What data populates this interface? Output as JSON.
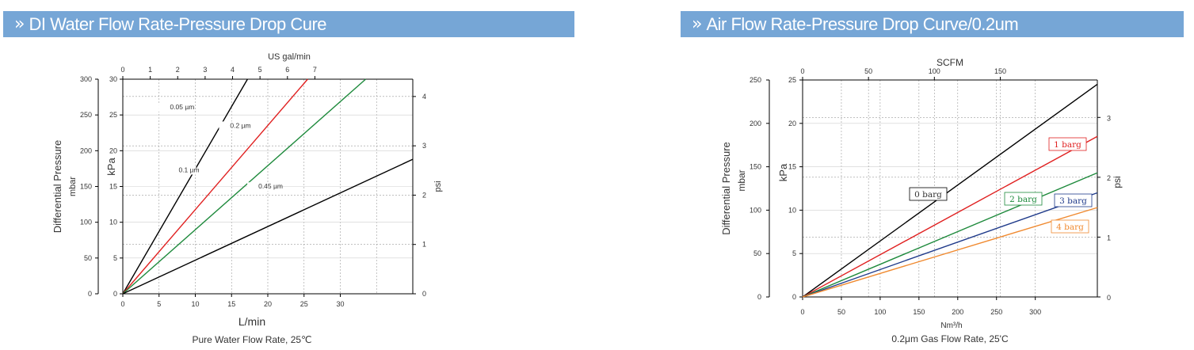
{
  "banners": [
    {
      "title": "DI Water Flow Rate-Pressure Drop Cure"
    },
    {
      "title": "Air Flow Rate-Pressure Drop Curve/0.2um"
    }
  ],
  "chart_data": [
    {
      "type": "line",
      "title": "DI Water Flow Rate-Pressure Drop Cure",
      "xlabel": "L/min",
      "xlabel2": "Pure Water Flow Rate, 25℃",
      "x2label": "US gal/min",
      "ylabel": "Differential Pressure",
      "y_mbar_label": "mbar",
      "y_kpa_label": "kPa",
      "y_psi_label": "psi",
      "xlim": [
        0,
        40
      ],
      "ylim": [
        0,
        30
      ],
      "x_ticks": [
        0,
        5,
        10,
        15,
        20,
        25,
        30
      ],
      "x2_ticks": [
        0,
        1,
        2,
        3,
        4,
        5,
        6,
        7
      ],
      "y_kpa_ticks": [
        0,
        5,
        10,
        15,
        20,
        25,
        30
      ],
      "y_mbar_ticks": [
        0,
        50,
        100,
        150,
        200,
        250,
        300
      ],
      "y_psi_ticks": [
        0,
        1,
        2,
        3,
        4
      ],
      "series": [
        {
          "name": "0.05 µm",
          "color": "#000000",
          "x": [
            0,
            17.2
          ],
          "y": [
            0,
            30
          ]
        },
        {
          "name": "0.1 µm",
          "color": "#e02020",
          "x": [
            0,
            25.5
          ],
          "y": [
            0,
            30
          ]
        },
        {
          "name": "0.2 µm",
          "color": "#1e8a3c",
          "x": [
            0,
            33.5
          ],
          "y": [
            0,
            30
          ]
        },
        {
          "name": "0.45 µm",
          "color": "#000000",
          "x": [
            0,
            40
          ],
          "y": [
            0,
            18.8
          ]
        }
      ]
    },
    {
      "type": "line",
      "title": "Air Flow Rate-Pressure Drop Curve/0.2um",
      "xlabel": "Nm³/h",
      "xlabel2": "0.2μm Gas Flow Rate, 25'C",
      "x2label": "SCFM",
      "ylabel": "Differential Pressure",
      "y_mbar_label": "mbar",
      "y_kpa_label": "kPa",
      "y_psi_label": "psi",
      "xlim": [
        0,
        380
      ],
      "ylim": [
        0,
        25
      ],
      "x_ticks": [
        0,
        50,
        100,
        150,
        200,
        250,
        300
      ],
      "x2_ticks": [
        0,
        50,
        100,
        150
      ],
      "y_kpa_ticks": [
        0,
        5,
        10,
        15,
        20,
        25
      ],
      "y_mbar_ticks": [
        0,
        50,
        100,
        150,
        200,
        250
      ],
      "y_psi_ticks": [
        0,
        1,
        2,
        3
      ],
      "series": [
        {
          "name": "0 barg",
          "color": "#000000",
          "x": [
            0,
            380
          ],
          "y": [
            0,
            24.5
          ]
        },
        {
          "name": "1 barg",
          "color": "#e02020",
          "x": [
            0,
            380
          ],
          "y": [
            0,
            18.5
          ]
        },
        {
          "name": "2 barg",
          "color": "#1e8a3c",
          "x": [
            0,
            380
          ],
          "y": [
            0,
            14.3
          ]
        },
        {
          "name": "3 barg",
          "color": "#1f3a8a",
          "x": [
            0,
            380
          ],
          "y": [
            0,
            12.0
          ]
        },
        {
          "name": "4 barg",
          "color": "#f08a30",
          "x": [
            0,
            380
          ],
          "y": [
            0,
            10.3
          ]
        }
      ]
    }
  ]
}
